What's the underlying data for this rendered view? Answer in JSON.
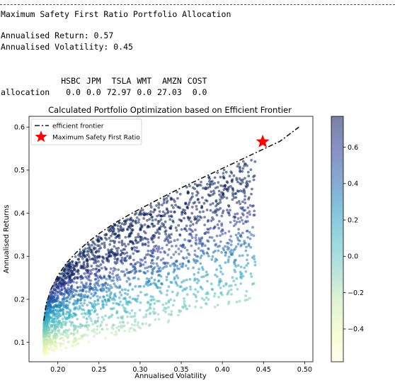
{
  "console": {
    "title": "Maximum Safety First Ratio Portfolio Allocation",
    "return_line": "Annualised Return: 0.57",
    "volatility_line": "Annualised Volatility: 0.45",
    "table": {
      "headers": [
        "HSBC",
        "JPM",
        "TSLA",
        "WMT",
        "AMZN",
        "COST"
      ],
      "row_label": "allocation",
      "values": [
        "0.0",
        "0.0",
        "72.97",
        "0.0",
        "27.03",
        "0.0"
      ]
    }
  },
  "chart_data": {
    "type": "scatter",
    "title": "Calculated Portfolio Optimization based on Efficient Frontier",
    "xlabel": "Annualised Volatility",
    "ylabel": "Annualised Returns",
    "xlim": [
      0.165,
      0.51
    ],
    "ylim": [
      0.055,
      0.625
    ],
    "xticks": [
      "0.20",
      "0.25",
      "0.30",
      "0.35",
      "0.40",
      "0.45",
      "0.50"
    ],
    "xtick_values": [
      0.2,
      0.25,
      0.3,
      0.35,
      0.4,
      0.45,
      0.5
    ],
    "yticks": [
      "0.1",
      "0.2",
      "0.3",
      "0.4",
      "0.5",
      "0.6"
    ],
    "ytick_values": [
      0.1,
      0.2,
      0.3,
      0.4,
      0.5,
      0.6
    ],
    "legend": {
      "position": "upper-left",
      "entries": [
        "efficient frontier",
        "Maximum Safety First Ratio"
      ]
    },
    "colorbar": {
      "ticks": [
        "0.6",
        "0.4",
        "0.2",
        "0.0",
        "−0.2",
        "−0.4"
      ],
      "tick_values": [
        0.6,
        0.4,
        0.2,
        0.0,
        -0.2,
        -0.4
      ],
      "range": [
        -0.58,
        0.77
      ],
      "colormap": "YlGnBu"
    },
    "efficient_frontier": {
      "x": [
        0.183,
        0.186,
        0.192,
        0.2,
        0.21,
        0.222,
        0.236,
        0.252,
        0.27,
        0.29,
        0.31,
        0.33,
        0.35,
        0.37,
        0.39,
        0.41,
        0.43,
        0.45,
        0.47,
        0.493
      ],
      "y": [
        0.15,
        0.19,
        0.225,
        0.255,
        0.283,
        0.308,
        0.332,
        0.355,
        0.378,
        0.4,
        0.42,
        0.44,
        0.459,
        0.477,
        0.495,
        0.513,
        0.531,
        0.549,
        0.567,
        0.6
      ]
    },
    "optimal_point": {
      "label": "Maximum Safety First Ratio",
      "x": 0.449,
      "y": 0.566,
      "color": "#ff0000"
    },
    "scatter_sample": {
      "n_points": 2600,
      "vol_min": 0.183,
      "vol_max": 0.44,
      "ret_min": 0.08,
      "ret_max": 0.56
    }
  }
}
